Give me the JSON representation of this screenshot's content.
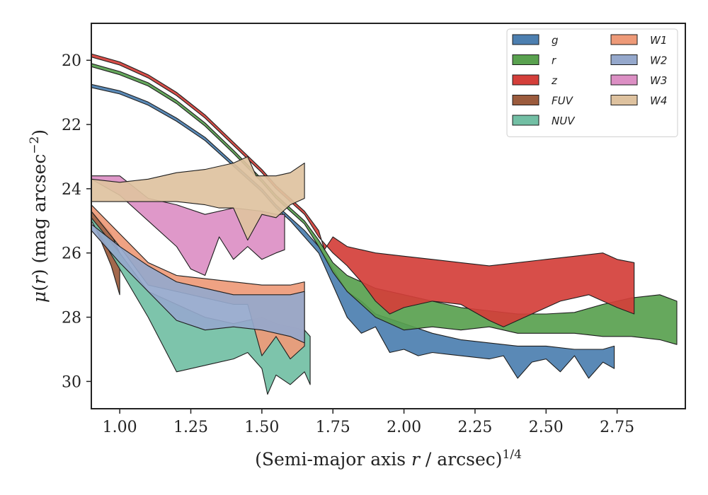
{
  "chart_data": {
    "type": "area",
    "xlabel": "(Semi-major axis r / arcsec)^(1/4)",
    "ylabel": "μ(r) (mag arcsec^−2)",
    "xlim": [
      0.9,
      2.99
    ],
    "ylim": [
      30.85,
      18.85
    ],
    "y_inverted": true,
    "xticks": [
      "1.00",
      "1.25",
      "1.50",
      "1.75",
      "2.00",
      "2.25",
      "2.50",
      "2.75"
    ],
    "yticks": [
      "20",
      "22",
      "24",
      "26",
      "28",
      "30"
    ],
    "legend": {
      "placement": "top-right",
      "columns": 2
    },
    "grid": false,
    "series": [
      {
        "name": "g",
        "color": "#4c7fb0",
        "upper": [
          [
            0.9,
            20.75
          ],
          [
            1.0,
            20.95
          ],
          [
            1.1,
            21.3
          ],
          [
            1.2,
            21.8
          ],
          [
            1.3,
            22.4
          ],
          [
            1.4,
            23.2
          ],
          [
            1.5,
            24.0
          ],
          [
            1.55,
            24.5
          ],
          [
            1.6,
            24.9
          ],
          [
            1.65,
            25.3
          ],
          [
            1.7,
            25.8
          ],
          [
            1.75,
            26.5
          ],
          [
            1.8,
            27.2
          ],
          [
            1.85,
            27.5
          ],
          [
            1.9,
            27.9
          ],
          [
            2.0,
            28.2
          ],
          [
            2.1,
            28.5
          ],
          [
            2.2,
            28.7
          ],
          [
            2.3,
            28.8
          ],
          [
            2.4,
            28.9
          ],
          [
            2.5,
            28.9
          ],
          [
            2.6,
            29.0
          ],
          [
            2.7,
            29.0
          ],
          [
            2.74,
            28.9
          ]
        ],
        "lower": [
          [
            0.9,
            20.85
          ],
          [
            1.0,
            21.05
          ],
          [
            1.1,
            21.4
          ],
          [
            1.2,
            21.9
          ],
          [
            1.3,
            22.5
          ],
          [
            1.4,
            23.3
          ],
          [
            1.5,
            24.1
          ],
          [
            1.55,
            24.6
          ],
          [
            1.6,
            25.0
          ],
          [
            1.65,
            25.5
          ],
          [
            1.7,
            26.0
          ],
          [
            1.75,
            27.0
          ],
          [
            1.8,
            28.0
          ],
          [
            1.85,
            28.5
          ],
          [
            1.9,
            28.3
          ],
          [
            1.95,
            29.1
          ],
          [
            2.0,
            29.0
          ],
          [
            2.05,
            29.2
          ],
          [
            2.1,
            29.1
          ],
          [
            2.2,
            29.2
          ],
          [
            2.3,
            29.3
          ],
          [
            2.35,
            29.2
          ],
          [
            2.4,
            29.9
          ],
          [
            2.45,
            29.4
          ],
          [
            2.5,
            29.3
          ],
          [
            2.55,
            29.7
          ],
          [
            2.6,
            29.2
          ],
          [
            2.65,
            29.9
          ],
          [
            2.7,
            29.4
          ],
          [
            2.74,
            29.6
          ]
        ]
      },
      {
        "name": "r",
        "color": "#59a14f",
        "upper": [
          [
            0.9,
            20.1
          ],
          [
            1.0,
            20.35
          ],
          [
            1.1,
            20.7
          ],
          [
            1.2,
            21.25
          ],
          [
            1.3,
            21.95
          ],
          [
            1.4,
            22.8
          ],
          [
            1.5,
            23.7
          ],
          [
            1.55,
            24.2
          ],
          [
            1.6,
            24.6
          ],
          [
            1.65,
            25.0
          ],
          [
            1.7,
            25.6
          ],
          [
            1.75,
            26.3
          ],
          [
            1.8,
            26.7
          ],
          [
            1.9,
            27.1
          ],
          [
            2.0,
            27.3
          ],
          [
            2.1,
            27.5
          ],
          [
            2.2,
            27.7
          ],
          [
            2.3,
            27.8
          ],
          [
            2.4,
            27.9
          ],
          [
            2.5,
            27.9
          ],
          [
            2.6,
            27.85
          ],
          [
            2.7,
            27.6
          ],
          [
            2.8,
            27.4
          ],
          [
            2.9,
            27.3
          ],
          [
            2.96,
            27.5
          ]
        ],
        "lower": [
          [
            0.9,
            20.2
          ],
          [
            1.0,
            20.45
          ],
          [
            1.1,
            20.8
          ],
          [
            1.2,
            21.35
          ],
          [
            1.3,
            22.05
          ],
          [
            1.4,
            22.9
          ],
          [
            1.5,
            23.8
          ],
          [
            1.55,
            24.3
          ],
          [
            1.6,
            24.7
          ],
          [
            1.65,
            25.1
          ],
          [
            1.7,
            25.8
          ],
          [
            1.75,
            26.6
          ],
          [
            1.8,
            27.2
          ],
          [
            1.85,
            27.6
          ],
          [
            1.9,
            28.0
          ],
          [
            1.95,
            28.2
          ],
          [
            2.0,
            28.4
          ],
          [
            2.1,
            28.3
          ],
          [
            2.2,
            28.4
          ],
          [
            2.3,
            28.3
          ],
          [
            2.4,
            28.5
          ],
          [
            2.5,
            28.5
          ],
          [
            2.6,
            28.5
          ],
          [
            2.7,
            28.6
          ],
          [
            2.8,
            28.6
          ],
          [
            2.9,
            28.7
          ],
          [
            2.96,
            28.85
          ]
        ]
      },
      {
        "name": "z",
        "color": "#d43f3a",
        "upper": [
          [
            0.9,
            19.8
          ],
          [
            1.0,
            20.05
          ],
          [
            1.1,
            20.45
          ],
          [
            1.2,
            21.0
          ],
          [
            1.3,
            21.7
          ],
          [
            1.4,
            22.55
          ],
          [
            1.5,
            23.4
          ],
          [
            1.55,
            23.9
          ],
          [
            1.6,
            24.3
          ],
          [
            1.65,
            24.7
          ],
          [
            1.7,
            25.3
          ],
          [
            1.72,
            25.9
          ],
          [
            1.75,
            25.5
          ],
          [
            1.8,
            25.8
          ],
          [
            1.85,
            25.9
          ],
          [
            1.9,
            26.0
          ],
          [
            2.0,
            26.1
          ],
          [
            2.1,
            26.2
          ],
          [
            2.2,
            26.3
          ],
          [
            2.3,
            26.4
          ],
          [
            2.4,
            26.3
          ],
          [
            2.5,
            26.2
          ],
          [
            2.6,
            26.1
          ],
          [
            2.7,
            26.0
          ],
          [
            2.75,
            26.2
          ],
          [
            2.81,
            26.3
          ]
        ],
        "lower": [
          [
            0.9,
            19.9
          ],
          [
            1.0,
            20.15
          ],
          [
            1.1,
            20.55
          ],
          [
            1.2,
            21.1
          ],
          [
            1.3,
            21.8
          ],
          [
            1.4,
            22.65
          ],
          [
            1.5,
            23.5
          ],
          [
            1.55,
            24.0
          ],
          [
            1.6,
            24.4
          ],
          [
            1.65,
            24.8
          ],
          [
            1.7,
            25.5
          ],
          [
            1.75,
            26.0
          ],
          [
            1.8,
            26.4
          ],
          [
            1.85,
            26.9
          ],
          [
            1.9,
            27.5
          ],
          [
            1.95,
            27.9
          ],
          [
            2.0,
            27.7
          ],
          [
            2.1,
            27.5
          ],
          [
            2.2,
            27.6
          ],
          [
            2.3,
            28.1
          ],
          [
            2.35,
            28.3
          ],
          [
            2.45,
            27.9
          ],
          [
            2.55,
            27.5
          ],
          [
            2.65,
            27.3
          ],
          [
            2.75,
            27.7
          ],
          [
            2.81,
            27.9
          ]
        ]
      },
      {
        "name": "FUV",
        "color": "#9b5b3d",
        "upper": [
          [
            0.9,
            24.7
          ],
          [
            0.97,
            25.4
          ],
          [
            1.0,
            26.0
          ]
        ],
        "lower": [
          [
            0.9,
            24.9
          ],
          [
            0.97,
            26.4
          ],
          [
            1.0,
            27.3
          ]
        ]
      },
      {
        "name": "NUV",
        "color": "#72bfa4",
        "upper": [
          [
            0.9,
            24.9
          ],
          [
            1.0,
            26.0
          ],
          [
            1.1,
            27.2
          ],
          [
            1.2,
            27.6
          ],
          [
            1.3,
            28.0
          ],
          [
            1.4,
            28.2
          ],
          [
            1.5,
            28.0
          ],
          [
            1.55,
            28.2
          ],
          [
            1.6,
            28.3
          ],
          [
            1.65,
            28.4
          ],
          [
            1.67,
            28.6
          ]
        ],
        "lower": [
          [
            0.9,
            25.0
          ],
          [
            1.0,
            26.5
          ],
          [
            1.1,
            28.0
          ],
          [
            1.2,
            29.7
          ],
          [
            1.3,
            29.5
          ],
          [
            1.4,
            29.3
          ],
          [
            1.45,
            29.1
          ],
          [
            1.5,
            29.6
          ],
          [
            1.52,
            30.4
          ],
          [
            1.55,
            29.8
          ],
          [
            1.6,
            30.1
          ],
          [
            1.65,
            29.7
          ],
          [
            1.67,
            30.1
          ]
        ]
      },
      {
        "name": "W1",
        "color": "#ee9a78",
        "upper": [
          [
            0.9,
            24.5
          ],
          [
            1.0,
            25.4
          ],
          [
            1.1,
            26.3
          ],
          [
            1.2,
            26.7
          ],
          [
            1.3,
            26.8
          ],
          [
            1.4,
            26.9
          ],
          [
            1.5,
            27.0
          ],
          [
            1.6,
            27.0
          ],
          [
            1.65,
            26.9
          ]
        ],
        "lower": [
          [
            0.9,
            24.7
          ],
          [
            1.0,
            25.8
          ],
          [
            1.1,
            27.0
          ],
          [
            1.2,
            27.2
          ],
          [
            1.3,
            27.4
          ],
          [
            1.4,
            27.6
          ],
          [
            1.45,
            27.6
          ],
          [
            1.5,
            29.2
          ],
          [
            1.55,
            28.6
          ],
          [
            1.6,
            29.3
          ],
          [
            1.65,
            28.9
          ]
        ]
      },
      {
        "name": "W2",
        "color": "#95a8cc",
        "upper": [
          [
            0.9,
            25.1
          ],
          [
            1.0,
            25.8
          ],
          [
            1.1,
            26.4
          ],
          [
            1.2,
            26.9
          ],
          [
            1.3,
            27.1
          ],
          [
            1.4,
            27.3
          ],
          [
            1.5,
            27.3
          ],
          [
            1.6,
            27.3
          ],
          [
            1.65,
            27.2
          ]
        ],
        "lower": [
          [
            0.9,
            25.3
          ],
          [
            1.0,
            26.3
          ],
          [
            1.1,
            27.2
          ],
          [
            1.2,
            28.1
          ],
          [
            1.3,
            28.4
          ],
          [
            1.4,
            28.3
          ],
          [
            1.5,
            28.4
          ],
          [
            1.6,
            28.6
          ],
          [
            1.65,
            28.8
          ]
        ]
      },
      {
        "name": "W3",
        "color": "#dc8fc4",
        "upper": [
          [
            0.9,
            23.6
          ],
          [
            1.0,
            23.6
          ],
          [
            1.1,
            24.3
          ],
          [
            1.2,
            24.5
          ],
          [
            1.3,
            24.8
          ],
          [
            1.4,
            24.6
          ],
          [
            1.5,
            24.7
          ],
          [
            1.55,
            24.8
          ],
          [
            1.58,
            24.8
          ]
        ],
        "lower": [
          [
            0.9,
            23.7
          ],
          [
            1.0,
            24.2
          ],
          [
            1.1,
            25.0
          ],
          [
            1.2,
            25.8
          ],
          [
            1.25,
            26.5
          ],
          [
            1.3,
            26.7
          ],
          [
            1.35,
            25.5
          ],
          [
            1.4,
            26.2
          ],
          [
            1.45,
            25.8
          ],
          [
            1.5,
            26.2
          ],
          [
            1.55,
            26.0
          ],
          [
            1.58,
            25.9
          ]
        ]
      },
      {
        "name": "W4",
        "color": "#dec29f",
        "upper": [
          [
            0.9,
            23.7
          ],
          [
            1.0,
            23.8
          ],
          [
            1.1,
            23.7
          ],
          [
            1.2,
            23.5
          ],
          [
            1.3,
            23.4
          ],
          [
            1.4,
            23.2
          ],
          [
            1.45,
            23.0
          ],
          [
            1.48,
            23.6
          ],
          [
            1.55,
            23.6
          ],
          [
            1.6,
            23.5
          ],
          [
            1.65,
            23.2
          ]
        ],
        "lower": [
          [
            0.9,
            24.4
          ],
          [
            1.0,
            24.4
          ],
          [
            1.1,
            24.4
          ],
          [
            1.2,
            24.4
          ],
          [
            1.3,
            24.5
          ],
          [
            1.35,
            24.6
          ],
          [
            1.4,
            24.6
          ],
          [
            1.45,
            25.6
          ],
          [
            1.5,
            24.8
          ],
          [
            1.55,
            24.9
          ],
          [
            1.6,
            24.5
          ],
          [
            1.65,
            24.3
          ]
        ]
      }
    ]
  }
}
